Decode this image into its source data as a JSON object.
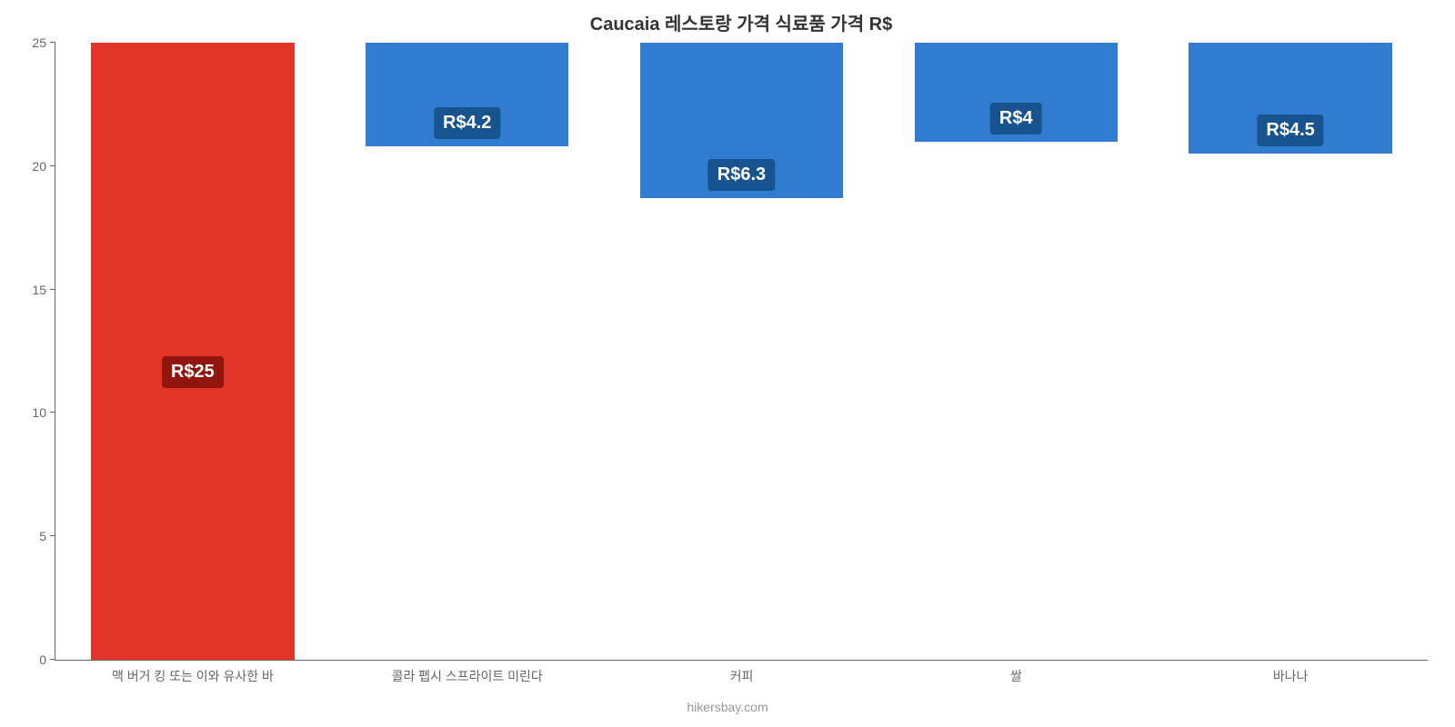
{
  "chart": {
    "type": "bar",
    "title": "Caucaia 레스토랑 가격 식료품 가격 R$",
    "title_fontsize": 20,
    "title_color": "#333333",
    "background_color": "#ffffff",
    "axis_color": "#666666",
    "tick_fontsize": 14,
    "tick_color": "#666666",
    "ylim": [
      0,
      25
    ],
    "ytick_step": 5,
    "yticks": [
      0,
      5,
      10,
      15,
      20,
      25
    ],
    "bar_width_pct": 74,
    "categories": [
      "맥 버거 킹 또는 이와 유사한 바",
      "콜라 펩시 스프라이트 미린다",
      "커피",
      "쌀",
      "바나나"
    ],
    "values": [
      25,
      4.2,
      6.3,
      4,
      4.5
    ],
    "value_labels": [
      "R$25",
      "R$4.2",
      "R$6.3",
      "R$4",
      "R$4.5"
    ],
    "bar_colors": [
      "#e3342a",
      "#2f7cd0",
      "#2f7cd0",
      "#2f7cd0",
      "#2f7cd0"
    ],
    "badge_bg_colors": [
      "#8f150d",
      "#16538f",
      "#16538f",
      "#16538f",
      "#16538f"
    ],
    "badge_text_color": "#ffffff",
    "badge_fontsize": 20,
    "credit": "hikersbay.com",
    "credit_color": "#999999",
    "credit_fontsize": 14
  }
}
